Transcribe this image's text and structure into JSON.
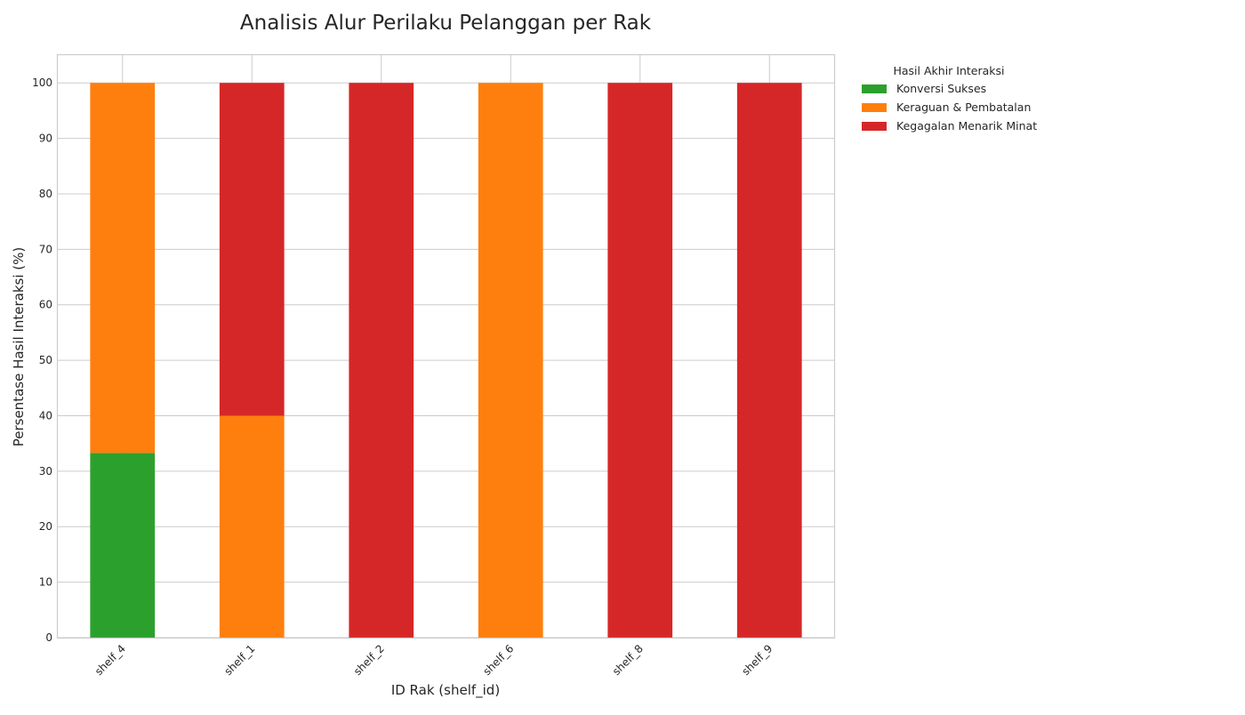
{
  "chart_data": {
    "type": "bar",
    "stacked": true,
    "title": "Analisis Alur Perilaku Pelanggan per Rak",
    "xlabel": "ID Rak (shelf_id)",
    "ylabel": "Persentase Hasil Interaksi (%)",
    "ylim": [
      0,
      105
    ],
    "yticks": [
      0,
      10,
      20,
      30,
      40,
      50,
      60,
      70,
      80,
      90,
      100
    ],
    "grid": true,
    "categories": [
      "shelf_4",
      "shelf_1",
      "shelf_2",
      "shelf_6",
      "shelf_8",
      "shelf_9"
    ],
    "series": [
      {
        "name": "Konversi Sukses",
        "color": "#2ca02c",
        "values": [
          33.3,
          0,
          0,
          0,
          0,
          0
        ]
      },
      {
        "name": "Keraguan & Pembatalan",
        "color": "#ff7f0e",
        "values": [
          66.7,
          40,
          0,
          100,
          0,
          0
        ]
      },
      {
        "name": "Kegagalan Menarik Minat",
        "color": "#d62728",
        "values": [
          0,
          60,
          100,
          0,
          100,
          100
        ]
      }
    ],
    "legend": {
      "title": "Hasil Akhir Interaksi",
      "placement": "outside-top-right"
    }
  }
}
